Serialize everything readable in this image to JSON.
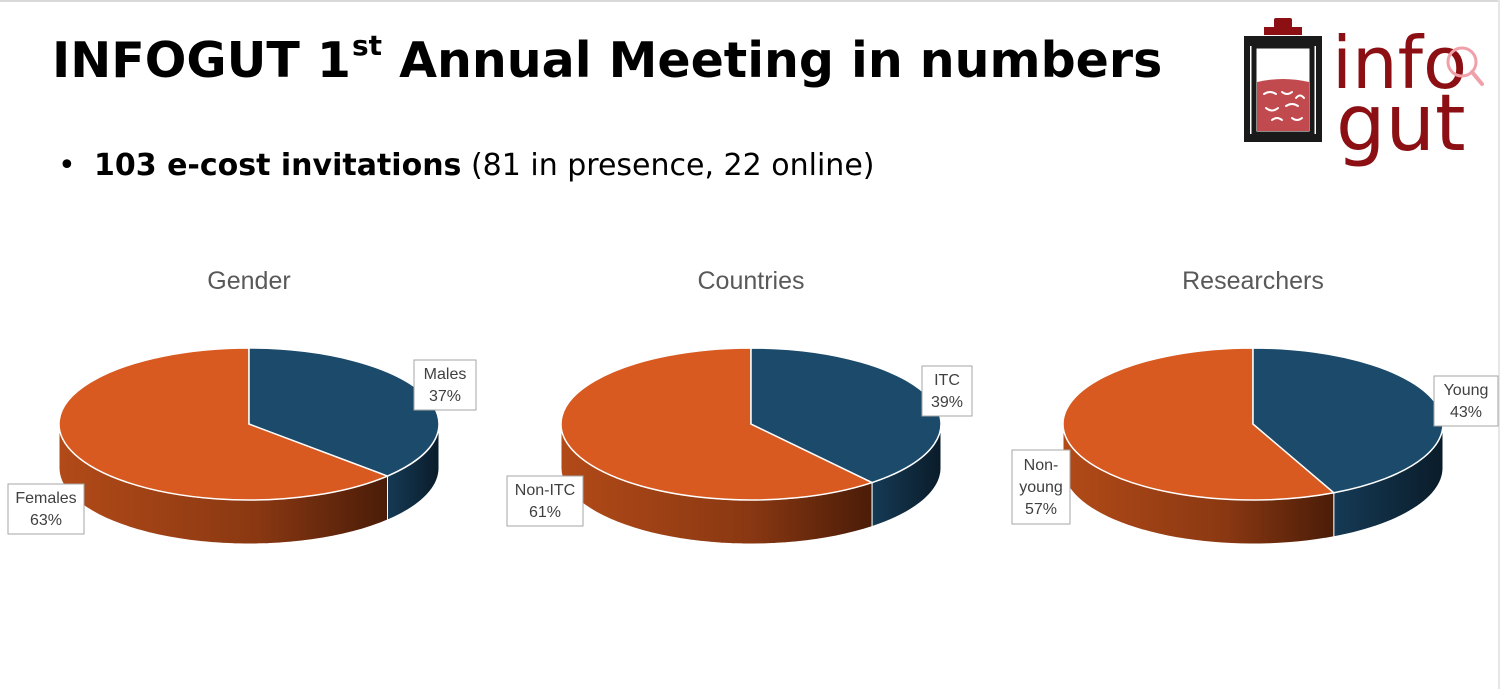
{
  "slide": {
    "title_main": "INFOGUT 1",
    "title_sup": "st",
    "title_rest": " Annual Meeting in numbers",
    "bullet_symbol": "•",
    "bullet_bold": "103 e-cost invitations",
    "bullet_rest": " (81 in presence, 22 online)"
  },
  "logo": {
    "text_top": "info",
    "text_bottom": "gut",
    "color": "#8b0f13"
  },
  "colors": {
    "orange": "#d95a20",
    "orange_side": "#9c3f14",
    "blue": "#1b4a6b",
    "blue_side": "#0f2a3d"
  },
  "chart_data": [
    {
      "type": "pie",
      "title": "Gender",
      "slices": [
        {
          "label": "Males",
          "value": 37,
          "display": "37%",
          "color": "#1b4a6b"
        },
        {
          "label": "Females",
          "value": 63,
          "display": "63%",
          "color": "#d95a20"
        }
      ]
    },
    {
      "type": "pie",
      "title": "Countries",
      "slices": [
        {
          "label": "ITC",
          "value": 39,
          "display": "39%",
          "color": "#1b4a6b"
        },
        {
          "label": "Non-ITC",
          "value": 61,
          "display": "61%",
          "color": "#d95a20"
        }
      ]
    },
    {
      "type": "pie",
      "title": "Researchers",
      "slices": [
        {
          "label": "Young",
          "value": 43,
          "display": "43%",
          "color": "#1b4a6b"
        },
        {
          "label": "Non-young",
          "value": 57,
          "display": "57%",
          "color": "#d95a20"
        }
      ]
    }
  ]
}
